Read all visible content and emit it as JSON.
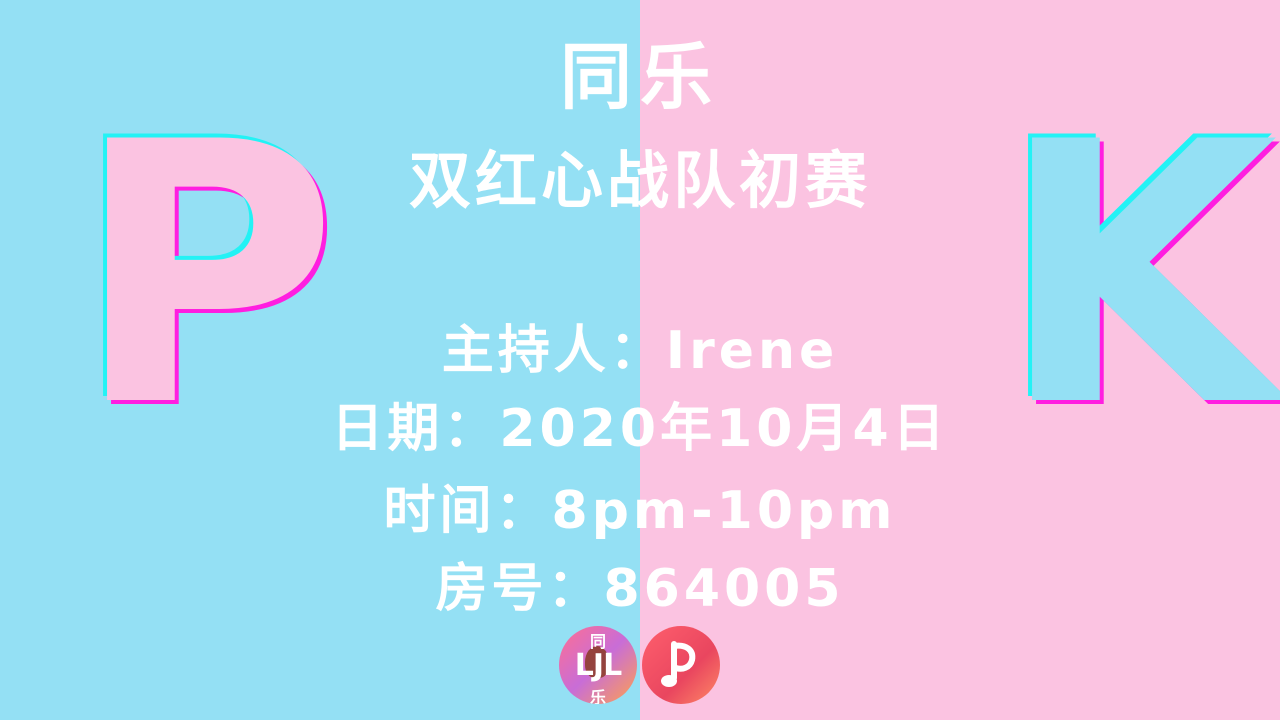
{
  "letters": {
    "left": "P",
    "right": "K"
  },
  "title": {
    "main": "同乐",
    "sub": "双红心战队初赛"
  },
  "info": {
    "host": "主持人：Irene",
    "date": "日期：2020年10月4日",
    "time": "时间：8pm-10pm",
    "room": "房号：864005"
  },
  "logos": {
    "ljl_top": "同",
    "ljl_mid": "LJL",
    "ljl_bottom": "乐",
    "colors": {
      "cyan": "#23f2f5",
      "magenta": "#ff1ee0",
      "pink_fill": "#fbc3e1",
      "blue_fill": "#94e0f4",
      "p_icon": "#e9465f"
    }
  }
}
